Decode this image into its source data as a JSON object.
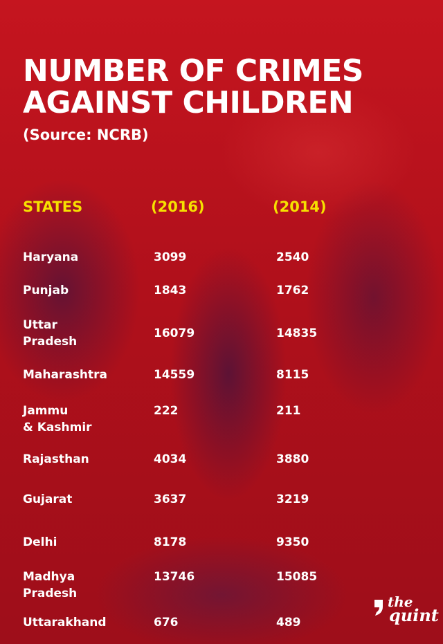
{
  "title": "NUMBER OF CRIMES\nAGAINST CHILDREN",
  "source": "(Source: NCRB)",
  "colors": {
    "background": "#b3101a",
    "header_text": "#f6e100",
    "body_text": "#ffffff"
  },
  "logo": {
    "line1": "the",
    "line2": "quint"
  },
  "chart_data": {
    "type": "table",
    "columns": [
      "STATES",
      "(2016)",
      "(2014)"
    ],
    "rows": [
      {
        "state": "Haryana",
        "y2016": "3099",
        "y2014": "2540"
      },
      {
        "state": "Punjab",
        "y2016": "1843",
        "y2014": "1762"
      },
      {
        "state": "Uttar\nPradesh",
        "y2016": "16079",
        "y2014": "14835"
      },
      {
        "state": "Maharashtra",
        "y2016": "14559",
        "y2014": "8115"
      },
      {
        "state": "Jammu\n& Kashmir",
        "y2016": "222",
        "y2014": "211"
      },
      {
        "state": "Rajasthan",
        "y2016": "4034",
        "y2014": "3880"
      },
      {
        "state": "Gujarat",
        "y2016": "3637",
        "y2014": "3219"
      },
      {
        "state": "Delhi",
        "y2016": "8178",
        "y2014": "9350"
      },
      {
        "state": "Madhya\nPradesh",
        "y2016": "13746",
        "y2014": "15085"
      },
      {
        "state": "Uttarakhand",
        "y2016": "676",
        "y2014": "489"
      }
    ]
  }
}
